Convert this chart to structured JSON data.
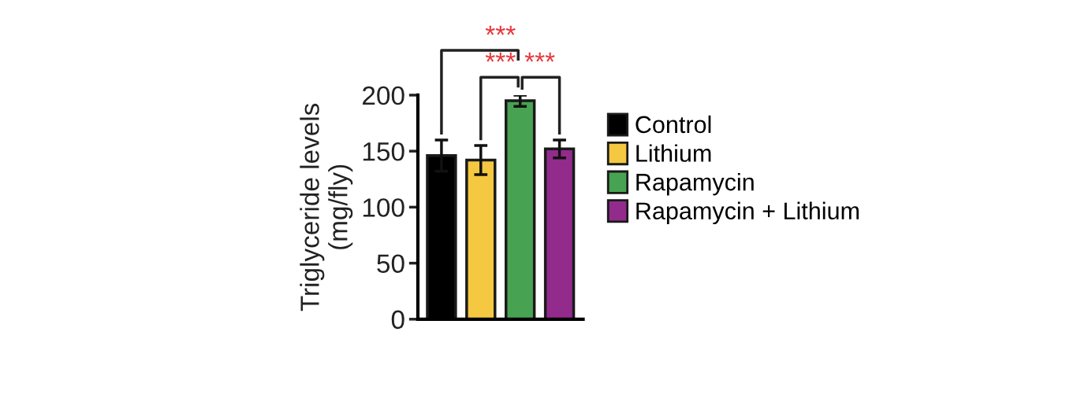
{
  "chart_data": {
    "type": "bar",
    "ylabel": "Triglyceride levels\n(mg/fly)",
    "categories": [
      null,
      null,
      null,
      null
    ],
    "series": [
      {
        "name": "Control",
        "color": "#000000",
        "values": [
          146,
          null,
          null,
          null
        ],
        "errors": [
          14,
          null,
          null,
          null
        ]
      },
      {
        "name": "Lithium",
        "color": "#f5c842",
        "values": [
          null,
          142,
          null,
          null
        ],
        "errors": [
          null,
          13,
          null,
          null
        ]
      },
      {
        "name": "Rapamycin",
        "color": "#47a352",
        "values": [
          null,
          null,
          195,
          null
        ],
        "errors": [
          null,
          null,
          5,
          null
        ]
      },
      {
        "name": "Rapamycin + Lithium",
        "color": "#922b8c",
        "values": [
          null,
          null,
          null,
          152
        ],
        "errors": [
          null,
          null,
          null,
          8
        ]
      }
    ],
    "ylim": [
      0,
      200
    ],
    "yticks": [
      0,
      50,
      100,
      150,
      200
    ],
    "grid": false,
    "legend": "right",
    "tick_labels": "y",
    "annotations": [
      "***",
      "***",
      "***"
    ]
  }
}
